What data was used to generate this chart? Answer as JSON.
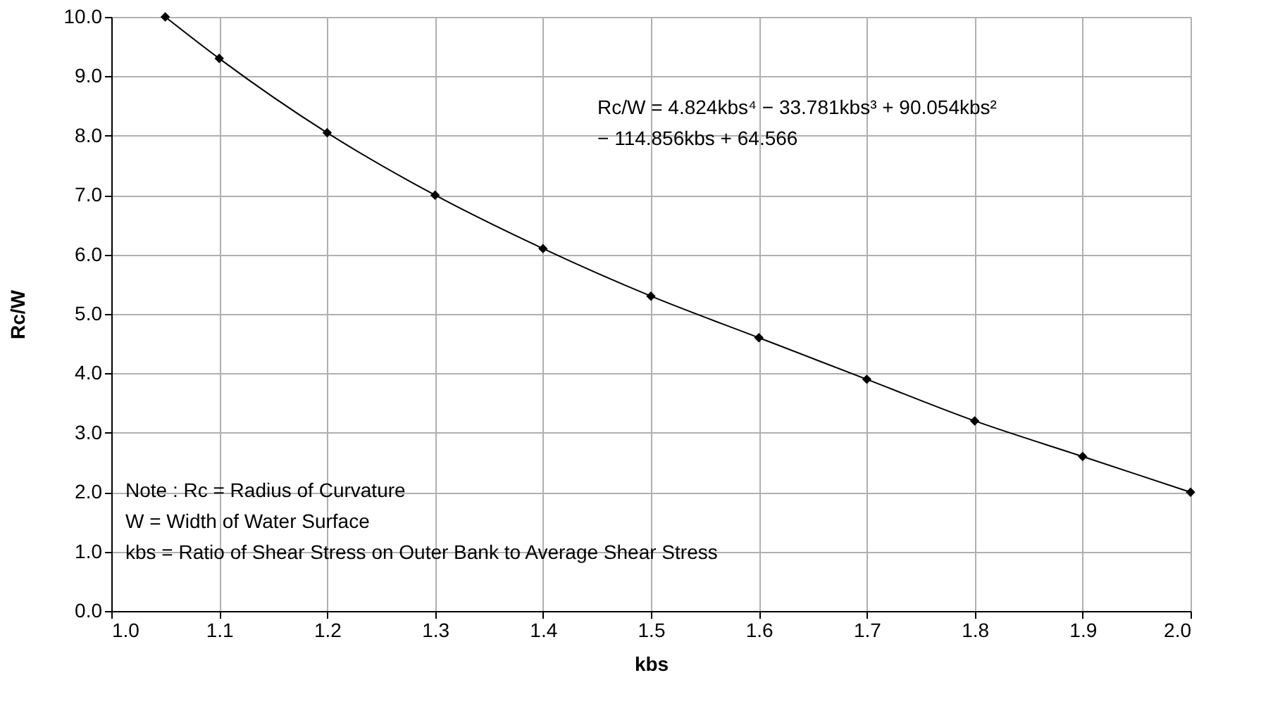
{
  "chart_data": {
    "type": "line",
    "xlabel": "kbs",
    "ylabel": "Rc/W",
    "x": [
      1.05,
      1.1,
      1.2,
      1.3,
      1.4,
      1.5,
      1.6,
      1.7,
      1.8,
      1.9,
      2.0
    ],
    "series": [
      {
        "color": "#000000",
        "values": [
          10.0,
          9.3,
          8.05,
          7.0,
          6.1,
          5.3,
          4.6,
          3.9,
          3.2,
          2.6,
          2.0
        ]
      }
    ],
    "marker": "diamond",
    "line_style": "solid",
    "grid": true,
    "xlim": [
      1.0,
      2.0
    ],
    "ylim": [
      0.0,
      10.0
    ],
    "xticks": [
      {
        "value": 1.0,
        "label": "1.0"
      },
      1.1,
      1.2,
      1.3,
      1.4,
      1.5,
      1.6,
      1.7,
      1.8,
      1.9,
      {
        "value": 2.0,
        "label": "2.0"
      }
    ],
    "yticks": [
      {
        "value": 0,
        "label": "0.0"
      },
      {
        "value": 1,
        "label": "1.0"
      },
      {
        "value": 2,
        "label": "2.0"
      },
      {
        "value": 3,
        "label": "3.0"
      },
      {
        "value": 4,
        "label": "4.0"
      },
      {
        "value": 5,
        "label": "5.0"
      },
      {
        "value": 6,
        "label": "6.0"
      },
      {
        "value": 7,
        "label": "7.0"
      },
      {
        "value": 8,
        "label": "8.0"
      },
      {
        "value": 9,
        "label": "9.0"
      },
      {
        "value": 10,
        "label": "10.0"
      }
    ],
    "annotations": [
      "Rc/W = 4.824kbs⁴ − 33.781kbs³ + 90.054kbs²\n        − 114.856kbs + 64.566",
      "Note : Rc = Radius of Curvature\n           W = Width of Water Surface\n           kbs = Ratio of Shear Stress on Outer Bank to Average Shear Stress"
    ]
  }
}
